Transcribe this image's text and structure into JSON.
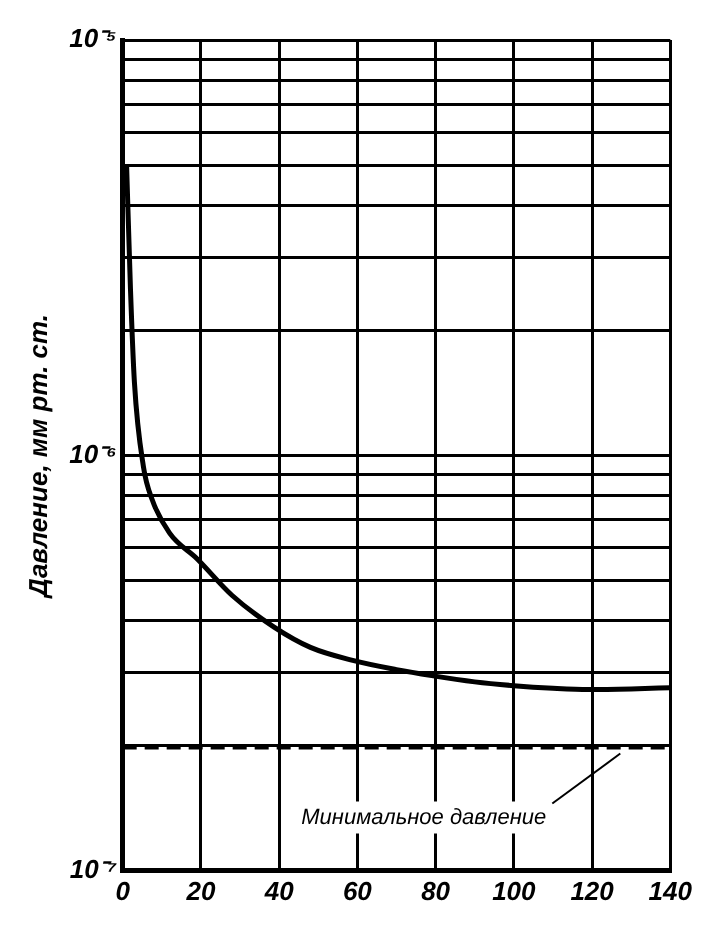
{
  "chart_data": {
    "type": "line",
    "ylabel": "Давление, мм рт. ст.",
    "series": [
      {
        "color": "#000000",
        "x": [
          1,
          2,
          3,
          5.3,
          7.6,
          12,
          19,
          28,
          38.7,
          48,
          58.8,
          70,
          79,
          90,
          100,
          110,
          119,
          130,
          140
        ],
        "values": [
          5e-06,
          2.5e-06,
          1.5e-06,
          9.4e-07,
          7.8e-07,
          6.5e-07,
          5.64e-07,
          4.6e-07,
          3.86e-07,
          3.45e-07,
          3.21e-07,
          3.05e-07,
          2.95e-07,
          2.85e-07,
          2.79e-07,
          2.75e-07,
          2.73e-07,
          2.74e-07,
          2.76e-07
        ]
      }
    ],
    "xlim": [
      0,
      140
    ],
    "xticks": [
      0,
      20,
      40,
      60,
      80,
      100,
      120,
      140
    ],
    "ylim": [
      1e-07,
      1e-05
    ],
    "yticks": [
      {
        "value": 1e-07,
        "label": "10⁻⁷"
      },
      {
        "value": 2e-07,
        "label": null
      },
      {
        "value": 3e-07,
        "label": null
      },
      {
        "value": 4e-07,
        "label": null
      },
      {
        "value": 5e-07,
        "label": null
      },
      {
        "value": 6e-07,
        "label": null
      },
      {
        "value": 7e-07,
        "label": null
      },
      {
        "value": 8e-07,
        "label": null
      },
      {
        "value": 9e-07,
        "label": null
      },
      {
        "value": 1e-06,
        "label": "10⁻⁶"
      },
      {
        "value": 2e-06,
        "label": null
      },
      {
        "value": 3e-06,
        "label": null
      },
      {
        "value": 4e-06,
        "label": null
      },
      {
        "value": 5e-06,
        "label": null
      },
      {
        "value": 6e-06,
        "label": null
      },
      {
        "value": 7e-06,
        "label": null
      },
      {
        "value": 8e-06,
        "label": null
      },
      {
        "value": 9e-06,
        "label": null
      },
      {
        "value": 1e-05,
        "label": "10⁻⁵"
      }
    ],
    "log": "y",
    "grid": true,
    "marker": "none",
    "line_style": "solid",
    "ref_lines": [
      {
        "axis": "y",
        "value": 1.98e-07,
        "label": "Минимальное давление",
        "line_style": "dashed",
        "color": "#000000"
      }
    ]
  }
}
